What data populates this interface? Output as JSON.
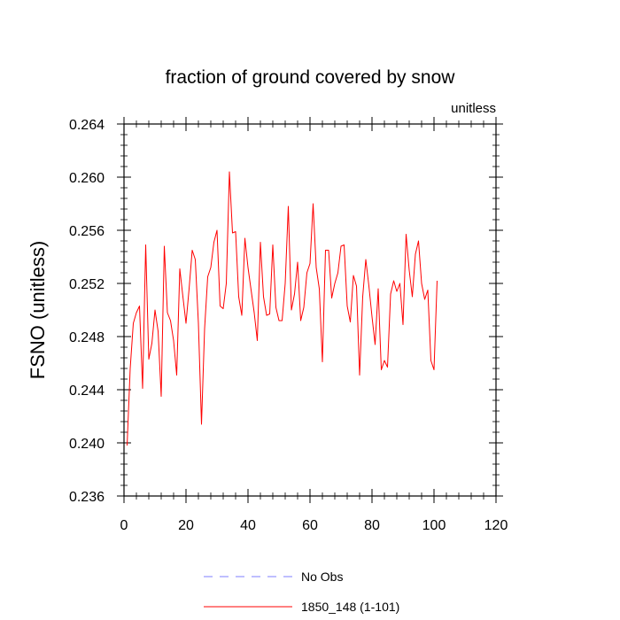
{
  "chart_data": {
    "type": "line",
    "title": "fraction of ground covered by snow",
    "units_label": "unitless",
    "xlabel": "",
    "ylabel": "FSNO  (unitless)",
    "xlim": [
      0,
      120
    ],
    "ylim": [
      0.236,
      0.264
    ],
    "xticks": [
      0,
      20,
      40,
      60,
      80,
      100,
      120
    ],
    "xtick_labels": [
      "0",
      "20",
      "40",
      "60",
      "80",
      "100",
      "120"
    ],
    "yticks": [
      0.236,
      0.24,
      0.244,
      0.248,
      0.252,
      0.256,
      0.26,
      0.264
    ],
    "ytick_labels": [
      "0.236",
      "0.240",
      "0.244",
      "0.248",
      "0.252",
      "0.256",
      "0.260",
      "0.264"
    ],
    "grid": false,
    "legend_position": "bottom-center",
    "series": [
      {
        "name": "No Obs",
        "color": "#7f7fff",
        "dash": "dashed",
        "x": [],
        "values": []
      },
      {
        "name": "1850_148 (1-101)",
        "color": "#ff0000",
        "dash": "solid",
        "x": [
          1,
          2,
          3,
          4,
          5,
          6,
          7,
          8,
          9,
          10,
          11,
          12,
          13,
          14,
          15,
          16,
          17,
          18,
          19,
          20,
          21,
          22,
          23,
          24,
          25,
          26,
          27,
          28,
          29,
          30,
          31,
          32,
          33,
          34,
          35,
          36,
          37,
          38,
          39,
          40,
          41,
          42,
          43,
          44,
          45,
          46,
          47,
          48,
          49,
          50,
          51,
          52,
          53,
          54,
          55,
          56,
          57,
          58,
          59,
          60,
          61,
          62,
          63,
          64,
          65,
          66,
          67,
          68,
          69,
          70,
          71,
          72,
          73,
          74,
          75,
          76,
          77,
          78,
          79,
          80,
          81,
          82,
          83,
          84,
          85,
          86,
          87,
          88,
          89,
          90,
          91,
          92,
          93,
          94,
          95,
          96,
          97,
          98,
          99,
          100,
          101
        ],
        "values": [
          0.2398,
          0.2456,
          0.249,
          0.2498,
          0.2503,
          0.2441,
          0.2549,
          0.2463,
          0.2475,
          0.25,
          0.2484,
          0.2435,
          0.2548,
          0.2498,
          0.2492,
          0.2477,
          0.2451,
          0.2531,
          0.251,
          0.249,
          0.2516,
          0.2545,
          0.2538,
          0.249,
          0.2414,
          0.2486,
          0.2525,
          0.2532,
          0.2551,
          0.256,
          0.2503,
          0.2501,
          0.252,
          0.2604,
          0.2558,
          0.2559,
          0.251,
          0.2496,
          0.2554,
          0.2532,
          0.2515,
          0.2498,
          0.2477,
          0.2551,
          0.251,
          0.2496,
          0.2497,
          0.2549,
          0.2502,
          0.2492,
          0.2492,
          0.252,
          0.2578,
          0.25,
          0.2512,
          0.2536,
          0.2492,
          0.2502,
          0.2528,
          0.2535,
          0.258,
          0.2532,
          0.2516,
          0.2461,
          0.2545,
          0.2545,
          0.2509,
          0.252,
          0.2528,
          0.2548,
          0.2549,
          0.2503,
          0.2491,
          0.2526,
          0.2518,
          0.2451,
          0.251,
          0.2538,
          0.2518,
          0.2495,
          0.2474,
          0.2516,
          0.2455,
          0.2462,
          0.2457,
          0.2512,
          0.2522,
          0.2514,
          0.252,
          0.2489,
          0.2557,
          0.253,
          0.251,
          0.2542,
          0.2552,
          0.252,
          0.2508,
          0.2515,
          0.2462,
          0.2455,
          0.2522
        ]
      }
    ]
  }
}
